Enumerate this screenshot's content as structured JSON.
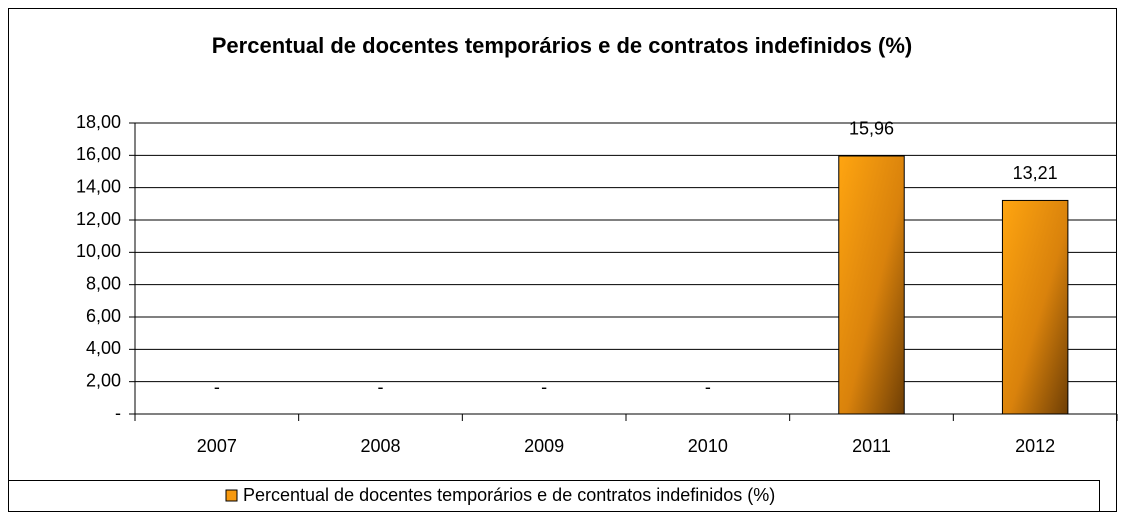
{
  "chart_data": {
    "type": "bar",
    "title": "Percentual de docentes temporários e de contratos indefinidos (%)",
    "categories": [
      "2007",
      "2008",
      "2009",
      "2010",
      "2011",
      "2012"
    ],
    "series": [
      {
        "name": "Percentual de docentes temporários e de contratos indefinidos (%)",
        "color": "#f7990f",
        "values": [
          0,
          0,
          0,
          0,
          15.96,
          13.21
        ],
        "value_labels": [
          "-",
          "-",
          "-",
          "-",
          "15,96",
          "13,21"
        ]
      }
    ],
    "ylim": [
      0,
      18
    ],
    "yticks": [
      {
        "value": 0,
        "label": "-"
      },
      {
        "value": 2,
        "label": "2,00"
      },
      {
        "value": 4,
        "label": "4,00"
      },
      {
        "value": 6,
        "label": "6,00"
      },
      {
        "value": 8,
        "label": "8,00"
      },
      {
        "value": 10,
        "label": "10,00"
      },
      {
        "value": 12,
        "label": "12,00"
      },
      {
        "value": 14,
        "label": "14,00"
      },
      {
        "value": 16,
        "label": "16,00"
      },
      {
        "value": 18,
        "label": "18,00"
      }
    ],
    "grid": true,
    "legend": "bottom"
  }
}
